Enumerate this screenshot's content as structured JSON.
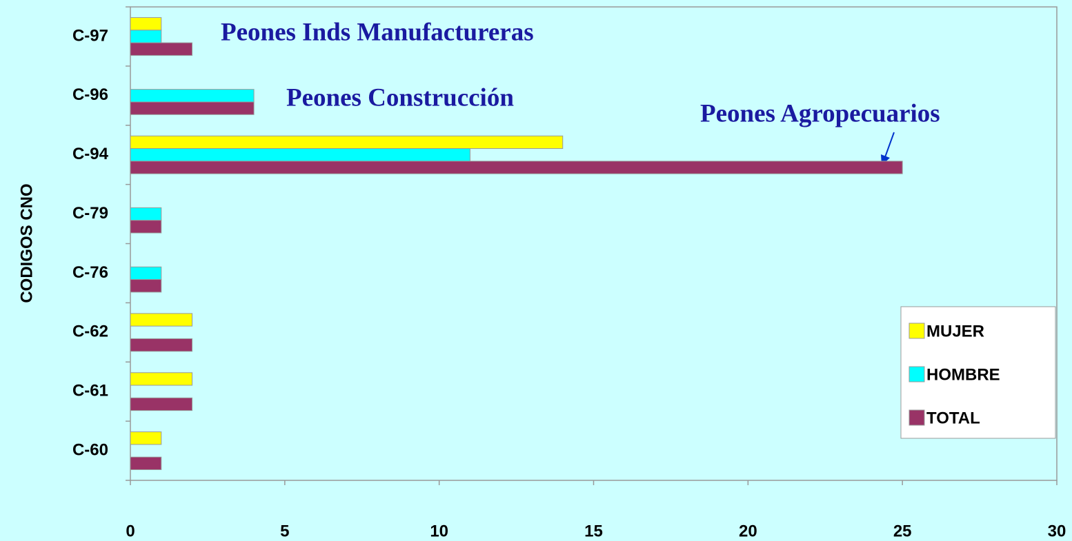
{
  "chart_data": {
    "type": "bar",
    "orientation": "horizontal",
    "y_axis_label": "CODIGOS CNO",
    "categories": [
      "C-60",
      "C-61",
      "C-62",
      "C-76",
      "C-79",
      "C-94",
      "C-96",
      "C-97"
    ],
    "series": [
      {
        "name": "MUJER",
        "color": "#ffff00",
        "values": [
          1,
          2,
          2,
          0,
          0,
          14,
          0,
          1
        ]
      },
      {
        "name": "HOMBRE",
        "color": "#00ffff",
        "values": [
          0,
          0,
          0,
          1,
          1,
          11,
          4,
          1
        ]
      },
      {
        "name": "TOTAL",
        "color": "#993366",
        "values": [
          1,
          2,
          2,
          1,
          1,
          25,
          4,
          2
        ]
      }
    ],
    "xlim": [
      0,
      30
    ],
    "xticks": [
      0,
      5,
      10,
      15,
      20,
      25,
      30
    ],
    "legend": "lower right",
    "annotations": [
      "Peones Inds Manufactureras",
      "Peones Construcción",
      "Peones Agropecuarios"
    ]
  }
}
